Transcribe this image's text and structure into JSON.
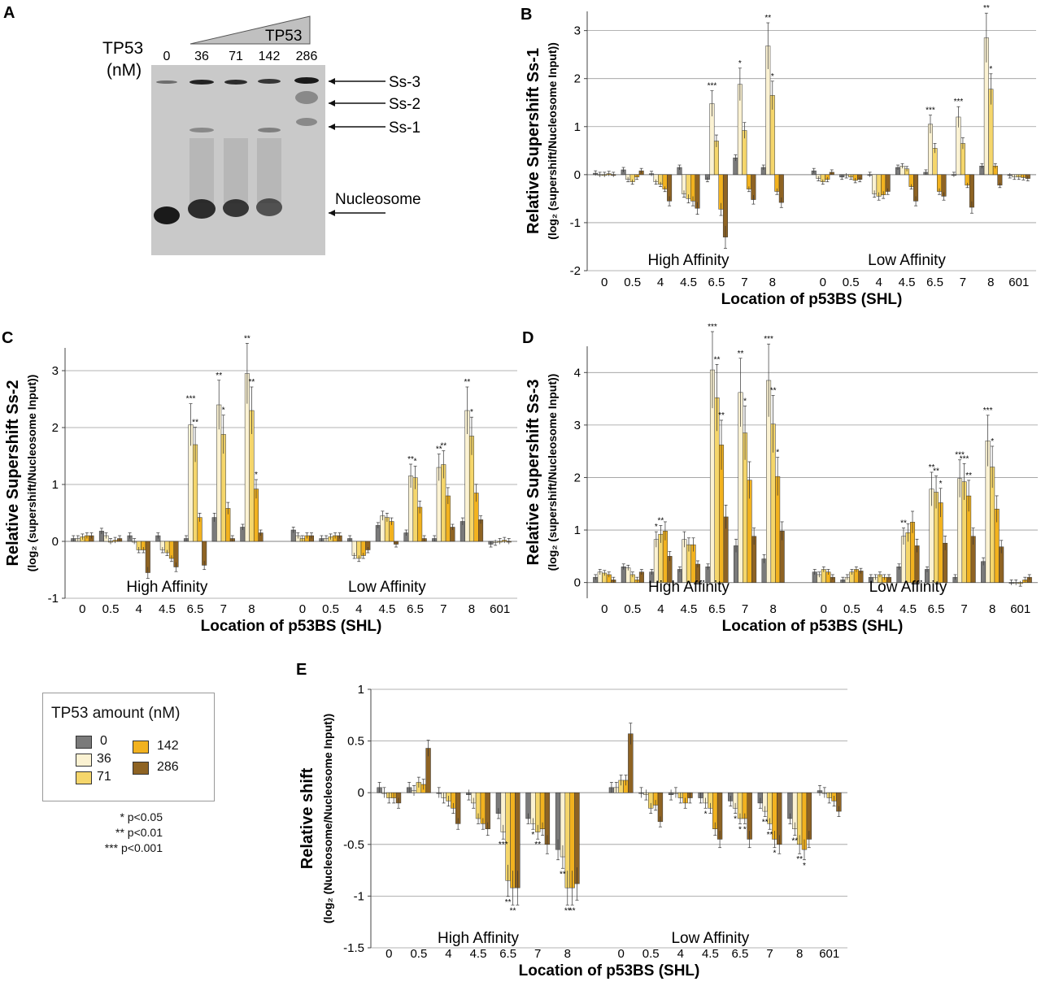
{
  "colors": {
    "c0": "#7a7a7a",
    "c36": "#fbf2d2",
    "c71": "#f5d66b",
    "c142": "#f2b21f",
    "c286": "#8e6323",
    "grid": "#9a9a9a",
    "gel_bg": "#c9c9c9"
  },
  "panelA": {
    "letter": "A",
    "tp53_label_line1": "TP53",
    "tp53_label_line2": "(nM)",
    "wedge_label": "TP53",
    "lanes": [
      "0",
      "36",
      "71",
      "142",
      "286"
    ],
    "bands": [
      "Ss-3",
      "Ss-2",
      "Ss-1",
      "Nucleosome"
    ]
  },
  "legend": {
    "title": "TP53 amount (nM)",
    "items": [
      {
        "label": "0",
        "color": "#7a7a7a"
      },
      {
        "label": "36",
        "color": "#fbf2d2"
      },
      {
        "label": "71",
        "color": "#f5d66b"
      },
      {
        "label": "142",
        "color": "#f2b21f"
      },
      {
        "label": "286",
        "color": "#8e6323"
      }
    ],
    "sig": [
      "* p<0.05",
      "** p<0.01",
      "*** p<0.001"
    ]
  },
  "chart_data": [
    {
      "id": "B",
      "letter": "B",
      "type": "bar",
      "ylabel_main": "Relative Supershift Ss-1",
      "ylabel_sub": "(log₂ (supershift/Nucleosome Input))",
      "xlabel": "Location of p53BS (SHL)",
      "group_labels": [
        "High Affinity",
        "Low Affinity"
      ],
      "ylim": [
        -2,
        3.4
      ],
      "yticks": [
        -2,
        -1,
        0,
        1,
        2,
        3
      ],
      "categories": [
        "0",
        "0.5",
        "4",
        "4.5",
        "6.5",
        "7",
        "8",
        "0",
        "0.5",
        "4",
        "4.5",
        "6.5",
        "7",
        "8",
        "601"
      ],
      "series": [
        {
          "name": "0",
          "values": [
            0.03,
            0.1,
            0.02,
            0.15,
            -0.1,
            0.35,
            0.15,
            0.08,
            -0.05,
            0.0,
            0.15,
            0.05,
            0.0,
            0.18,
            -0.02
          ]
        },
        {
          "name": "36",
          "values": [
            0.0,
            -0.1,
            -0.15,
            -0.4,
            1.48,
            1.88,
            2.68,
            -0.08,
            -0.02,
            -0.4,
            0.18,
            1.05,
            1.2,
            2.85,
            -0.05
          ]
        },
        {
          "name": "71",
          "values": [
            0.0,
            -0.15,
            -0.2,
            -0.5,
            0.7,
            0.92,
            1.65,
            -0.15,
            -0.05,
            -0.45,
            0.12,
            0.55,
            0.65,
            1.78,
            -0.05
          ]
        },
        {
          "name": "142",
          "values": [
            0.02,
            -0.05,
            -0.3,
            -0.55,
            -0.72,
            -0.3,
            -0.35,
            -0.1,
            -0.12,
            -0.42,
            -0.25,
            -0.35,
            -0.22,
            0.18,
            -0.06
          ]
        },
        {
          "name": "286",
          "values": [
            0.0,
            0.08,
            -0.55,
            -0.7,
            -1.3,
            -0.52,
            -0.58,
            0.05,
            -0.1,
            -0.35,
            -0.55,
            -0.45,
            -0.68,
            -0.22,
            -0.08
          ]
        }
      ],
      "stars": [
        [],
        [],
        [],
        [],
        [
          "***",
          "",
          ""
        ],
        [
          "*",
          "",
          ""
        ],
        [
          "**",
          "*",
          ""
        ],
        [],
        [],
        [],
        [],
        [
          "***",
          "",
          ""
        ],
        [
          "***",
          "",
          ""
        ],
        [
          "**",
          "*",
          ""
        ],
        []
      ]
    },
    {
      "id": "C",
      "letter": "C",
      "type": "bar",
      "ylabel_main": "Relative Supershift  Ss-2",
      "ylabel_sub": "(log₂ (supershift/Nucleosome Input))",
      "xlabel": "Location of p53BS (SHL)",
      "group_labels": [
        "High Affinity",
        "Low Affinity"
      ],
      "ylim": [
        -1,
        3.4
      ],
      "yticks": [
        -1,
        0,
        1,
        2,
        3
      ],
      "categories": [
        "0",
        "0.5",
        "4",
        "4.5",
        "6.5",
        "7",
        "8",
        "0",
        "0.5",
        "4",
        "4.5",
        "6.5",
        "7",
        "8",
        "601"
      ],
      "series": [
        {
          "name": "0",
          "values": [
            0.05,
            0.18,
            0.1,
            0.1,
            0.05,
            0.42,
            0.25,
            0.2,
            0.05,
            0.05,
            0.28,
            0.15,
            0.05,
            0.35,
            -0.05
          ]
        },
        {
          "name": "36",
          "values": [
            0.05,
            0.1,
            0.0,
            -0.15,
            2.05,
            2.4,
            2.95,
            0.1,
            0.05,
            -0.25,
            0.45,
            1.15,
            1.3,
            2.3,
            -0.02
          ]
        },
        {
          "name": "71",
          "values": [
            0.08,
            0.0,
            -0.15,
            -0.2,
            1.7,
            1.88,
            2.3,
            0.05,
            0.08,
            -0.3,
            0.42,
            1.12,
            1.35,
            1.85,
            0.0
          ]
        },
        {
          "name": "142",
          "values": [
            0.1,
            0.02,
            -0.15,
            -0.3,
            0.42,
            0.58,
            0.92,
            0.1,
            0.1,
            -0.25,
            0.35,
            0.6,
            0.8,
            0.85,
            0.02
          ]
        },
        {
          "name": "286",
          "values": [
            0.1,
            0.05,
            -0.55,
            -0.45,
            -0.42,
            0.05,
            0.15,
            0.1,
            0.1,
            -0.15,
            -0.05,
            0.05,
            0.25,
            0.38,
            0.0
          ]
        }
      ],
      "stars": [
        [],
        [],
        [],
        [],
        [
          "***",
          "**",
          ""
        ],
        [
          "**",
          "*",
          ""
        ],
        [
          "**",
          "**",
          "*"
        ],
        [],
        [],
        [],
        [],
        [
          "**",
          "*",
          ""
        ],
        [
          "**",
          "**",
          ""
        ],
        [
          "**",
          "*",
          ""
        ],
        []
      ]
    },
    {
      "id": "D",
      "letter": "D",
      "type": "bar",
      "ylabel_main": "Relative Supershift Ss-3",
      "ylabel_sub": "(log₂ (supershift/Nucleosome Input))",
      "xlabel": "Location of p53BS (SHL)",
      "group_labels": [
        "High Affinity",
        "Low Affinity"
      ],
      "ylim": [
        -0.3,
        4.5
      ],
      "yticks": [
        0,
        1,
        2,
        3,
        4
      ],
      "categories": [
        "0",
        "0.5",
        "4",
        "4.5",
        "6.5",
        "7",
        "8",
        "0",
        "0.5",
        "4",
        "4.5",
        "6.5",
        "7",
        "8",
        "601"
      ],
      "series": [
        {
          "name": "0",
          "values": [
            0.1,
            0.3,
            0.2,
            0.25,
            0.3,
            0.7,
            0.45,
            0.2,
            0.05,
            0.1,
            0.3,
            0.25,
            0.1,
            0.4,
            0.0
          ]
        },
        {
          "name": "36",
          "values": [
            0.2,
            0.28,
            0.82,
            0.82,
            4.05,
            3.62,
            3.85,
            0.15,
            0.1,
            0.1,
            0.88,
            1.78,
            1.98,
            2.7,
            0.0
          ]
        },
        {
          "name": "71",
          "values": [
            0.18,
            0.15,
            0.92,
            0.72,
            3.52,
            2.85,
            3.02,
            0.25,
            0.2,
            0.15,
            0.95,
            1.72,
            1.92,
            2.2,
            -0.02
          ]
        },
        {
          "name": "142",
          "values": [
            0.15,
            0.05,
            0.98,
            0.72,
            2.62,
            1.95,
            2.02,
            0.2,
            0.25,
            0.1,
            1.15,
            1.52,
            1.65,
            1.4,
            0.05
          ]
        },
        {
          "name": "286",
          "values": [
            0.05,
            0.2,
            0.5,
            0.35,
            1.25,
            0.88,
            0.98,
            0.1,
            0.22,
            0.1,
            0.7,
            0.75,
            0.88,
            0.68,
            0.1
          ]
        }
      ],
      "stars": [
        [],
        [],
        [
          "*",
          "**",
          ""
        ],
        [],
        [
          "***",
          "**",
          "**"
        ],
        [
          "**",
          "*",
          ""
        ],
        [
          "***",
          "**",
          "*"
        ],
        [],
        [],
        [],
        [
          "**",
          "",
          ""
        ],
        [
          "**",
          "**",
          "*"
        ],
        [
          "***",
          "***",
          "**"
        ],
        [
          "***",
          "*",
          ""
        ],
        []
      ]
    },
    {
      "id": "E",
      "letter": "E",
      "type": "bar",
      "ylabel_main": "Relative shift",
      "ylabel_sub": "(log₂ (Nucleosome/Nucleosome Input))",
      "xlabel": "Location of p53BS (SHL)",
      "group_labels": [
        "High Affinity",
        "Low Affinity"
      ],
      "ylim": [
        -1.5,
        1.0
      ],
      "yticks": [
        -1.5,
        -1,
        -0.5,
        0,
        0.5,
        1
      ],
      "categories": [
        "0",
        "0.5",
        "4",
        "4.5",
        "6.5",
        "7",
        "8",
        "0",
        "0.5",
        "4",
        "4.5",
        "6.5",
        "7",
        "8",
        "601"
      ],
      "series": [
        {
          "name": "0",
          "values": [
            0.05,
            0.05,
            0.0,
            -0.02,
            -0.2,
            -0.25,
            -0.55,
            0.05,
            0.0,
            -0.02,
            -0.05,
            -0.08,
            -0.1,
            -0.25,
            0.02
          ]
        },
        {
          "name": "36",
          "values": [
            0.0,
            0.02,
            -0.05,
            -0.1,
            -0.38,
            -0.3,
            -0.62,
            0.05,
            -0.02,
            0.0,
            -0.1,
            -0.15,
            -0.18,
            -0.35,
            0.0
          ]
        },
        {
          "name": "71",
          "values": [
            -0.05,
            0.1,
            -0.08,
            -0.25,
            -0.85,
            -0.38,
            -0.92,
            0.12,
            -0.15,
            -0.05,
            -0.15,
            -0.25,
            -0.3,
            -0.5,
            -0.05
          ]
        },
        {
          "name": "142",
          "values": [
            -0.05,
            0.08,
            -0.15,
            -0.3,
            -0.92,
            -0.35,
            -0.92,
            0.12,
            -0.12,
            -0.1,
            -0.35,
            -0.25,
            -0.45,
            -0.55,
            -0.08
          ]
        },
        {
          "name": "286",
          "values": [
            -0.1,
            0.43,
            -0.3,
            -0.35,
            -0.92,
            -0.5,
            -0.88,
            0.57,
            -0.28,
            -0.05,
            -0.45,
            -0.45,
            -0.5,
            -0.45,
            -0.18
          ]
        }
      ],
      "stars": [
        [],
        [],
        [],
        [],
        [
          "***",
          "**",
          "**"
        ],
        [
          "*",
          "**",
          ""
        ],
        [
          "**",
          "**",
          "**"
        ],
        [],
        [],
        [],
        [
          "*",
          "",
          ""
        ],
        [
          "*",
          "*",
          "*"
        ],
        [
          "**",
          "**",
          "*"
        ],
        [
          "**",
          "**",
          "*"
        ],
        []
      ]
    }
  ]
}
